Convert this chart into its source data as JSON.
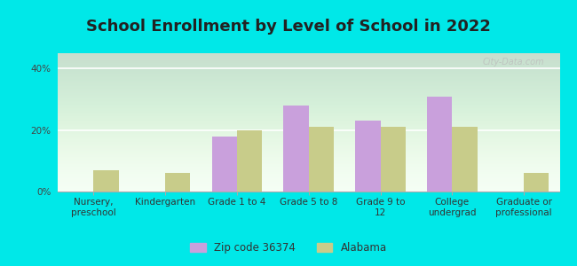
{
  "title": "School Enrollment by Level of School in 2022",
  "categories": [
    "Nursery,\npreschool",
    "Kindergarten",
    "Grade 1 to 4",
    "Grade 5 to 8",
    "Grade 9 to\n12",
    "College\nundergrad",
    "Graduate or\nprofessional"
  ],
  "zip_values": [
    0,
    0,
    18,
    28,
    23,
    31,
    0
  ],
  "al_values": [
    7,
    6,
    20,
    21,
    21,
    21,
    6
  ],
  "zip_color": "#c9a0dc",
  "al_color": "#c8cc8a",
  "zip_label": "Zip code 36374",
  "al_label": "Alabama",
  "ylim": [
    0,
    45
  ],
  "yticks": [
    0,
    20,
    40
  ],
  "ytick_labels": [
    "0%",
    "20%",
    "40%"
  ],
  "background_color": "#00e8e8",
  "plot_bg_grad_top": "#e8f5e8",
  "plot_bg_grad_bottom": "#f5fff5",
  "title_fontsize": 13,
  "tick_fontsize": 7.5,
  "legend_fontsize": 8.5,
  "bar_width": 0.35,
  "watermark": "City-Data.com"
}
